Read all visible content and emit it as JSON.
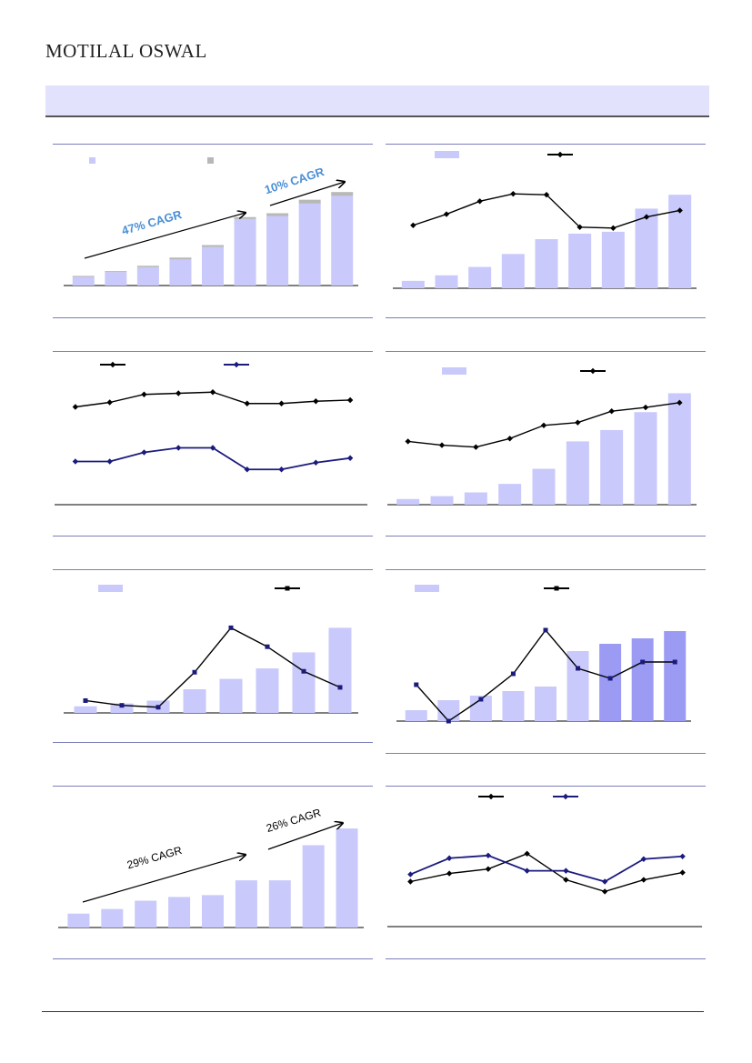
{
  "header": {
    "brand": "MOTILAL OSWAL",
    "band_title": ""
  },
  "colors": {
    "bar": "#c9c9fb",
    "bar_dark": "#9b9bf4",
    "bar_cap": "#b8b8b8",
    "line_black": "#000000",
    "line_navy": "#1b1b7e",
    "rule": "#7a7fb8"
  },
  "chart_data": [
    {
      "id": "c1",
      "type": "bar",
      "categories": [
        "",
        "",
        "",
        "",
        "",
        "",
        "",
        "",
        ""
      ],
      "series": [
        {
          "values": [
            9,
            14,
            19,
            27,
            40,
            69,
            72,
            85,
            93
          ]
        },
        {
          "values": [
            1,
            1,
            1.5,
            2,
            2,
            2,
            3,
            4,
            4
          ]
        }
      ],
      "ylim": [
        0,
        100
      ],
      "annotations": [
        "47% CAGR",
        "10% CAGR"
      ]
    },
    {
      "id": "c2",
      "type": "bar",
      "categories": [
        "",
        "",
        "",
        "",
        "",
        "",
        "",
        "",
        ""
      ],
      "series": [
        {
          "type": "bar",
          "values": [
            8,
            14,
            23,
            37,
            53,
            59,
            61,
            86,
            101
          ]
        },
        {
          "type": "line",
          "values": [
            68,
            80,
            94,
            102,
            101,
            66,
            65,
            77,
            84
          ]
        }
      ],
      "ylim": [
        0,
        110
      ]
    },
    {
      "id": "c3",
      "type": "line",
      "categories": [
        "",
        "",
        "",
        "",
        "",
        "",
        "",
        "",
        ""
      ],
      "series": [
        {
          "values": [
            86,
            90,
            97,
            98,
            99,
            89,
            89,
            91,
            92
          ]
        },
        {
          "values": [
            38,
            38,
            46,
            50,
            50,
            31,
            31,
            37,
            41
          ]
        }
      ],
      "ylim": [
        0,
        120
      ]
    },
    {
      "id": "c4",
      "type": "bar",
      "categories": [
        "",
        "",
        "",
        "",
        "",
        "",
        "",
        "",
        ""
      ],
      "series": [
        {
          "type": "bar",
          "values": [
            6,
            9,
            13,
            22,
            38,
            67,
            79,
            98,
            118
          ]
        },
        {
          "type": "line",
          "values": [
            67,
            63,
            61,
            70,
            84,
            87,
            99,
            103,
            108
          ]
        }
      ],
      "ylim": [
        0,
        130
      ]
    },
    {
      "id": "c5",
      "type": "bar",
      "categories": [
        "",
        "",
        "",
        "",
        "",
        "",
        "",
        ""
      ],
      "series": [
        {
          "type": "bar",
          "values": [
            7,
            10,
            13,
            25,
            36,
            47,
            64,
            90
          ]
        },
        {
          "type": "line",
          "values": [
            13,
            8,
            6,
            43,
            90,
            70,
            44,
            27
          ]
        }
      ],
      "ylim": [
        0,
        100
      ]
    },
    {
      "id": "c6",
      "type": "bar",
      "categories": [
        "",
        "",
        "",
        "",
        "",
        "",
        "",
        "",
        ""
      ],
      "series": [
        {
          "type": "bar",
          "values": [
            12,
            23,
            28,
            33,
            38,
            77,
            85,
            91,
            99
          ],
          "highlight_from_index": 6
        },
        {
          "type": "line",
          "values": [
            40,
            0,
            24,
            52,
            100,
            58,
            47,
            65,
            65
          ]
        }
      ],
      "ylim": [
        0,
        110
      ]
    },
    {
      "id": "c7",
      "type": "bar",
      "categories": [
        "",
        "",
        "",
        "",
        "",
        "",
        "",
        "",
        ""
      ],
      "series": [
        {
          "values": [
            15,
            20,
            29,
            33,
            35,
            51,
            51,
            89,
            107
          ]
        }
      ],
      "ylim": [
        0,
        115
      ],
      "annotations": [
        "29% CAGR",
        "26% CAGR"
      ]
    },
    {
      "id": "c8",
      "type": "line",
      "categories": [
        "",
        "",
        "",
        "",
        "",
        "",
        "",
        ""
      ],
      "series": [
        {
          "values": [
            50,
            59,
            64,
            81,
            52,
            39,
            52,
            60
          ]
        },
        {
          "values": [
            58,
            76,
            79,
            62,
            62,
            50,
            75,
            78
          ]
        }
      ],
      "ylim": [
        0,
        100
      ]
    }
  ]
}
